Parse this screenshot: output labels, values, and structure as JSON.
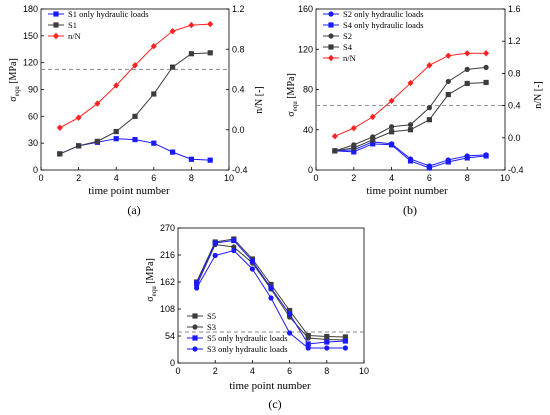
{
  "colors": {
    "black_series": "#3c3c3c",
    "blue_series": "#1a1aff",
    "red_series": "#ff2020",
    "dashed": "#888888"
  },
  "chart_data": [
    {
      "type": "line",
      "caption": "(a)",
      "xlabel": "time point number",
      "ylabel_sym": "σ",
      "ylabel_sub": "equ",
      "ylabel_unit": " [MPa]",
      "y2label": "n/N [-]",
      "xlim": [
        0,
        10
      ],
      "ylim": [
        0,
        180
      ],
      "y2lim": [
        -0.4,
        1.2
      ],
      "xticks": [
        0,
        2,
        4,
        6,
        8,
        10
      ],
      "yticks": [
        0,
        30,
        60,
        90,
        120,
        150,
        180
      ],
      "y2ticks": [
        -0.4,
        0.0,
        0.4,
        0.8,
        1.2
      ],
      "hline": {
        "axis": "y2",
        "value": 0.6
      },
      "legend_position": "top-left",
      "x": [
        1,
        2,
        3,
        4,
        5,
        6,
        7,
        8,
        9
      ],
      "series": [
        {
          "name": "S1 only hydraulic loads",
          "axis": "y",
          "color": "#1a1aff",
          "marker": "square",
          "values": [
            18,
            27,
            31,
            35,
            34,
            30,
            20,
            12,
            11
          ]
        },
        {
          "name": "S1",
          "axis": "y",
          "color": "#3c3c3c",
          "marker": "square",
          "values": [
            18,
            27,
            32,
            43,
            60,
            85,
            115,
            130,
            131
          ]
        },
        {
          "name": "n/N",
          "axis": "y2",
          "color": "#ff2020",
          "marker": "diamond",
          "values": [
            0.02,
            0.12,
            0.26,
            0.44,
            0.64,
            0.83,
            0.98,
            1.04,
            1.05
          ]
        }
      ]
    },
    {
      "type": "line",
      "caption": "(b)",
      "xlabel": "time point number",
      "ylabel_sym": "σ",
      "ylabel_sub": "equ",
      "ylabel_unit": " [MPa]",
      "y2label": "n/N [-]",
      "xlim": [
        0,
        10
      ],
      "ylim": [
        0,
        160
      ],
      "y2lim": [
        -0.4,
        1.6
      ],
      "xticks": [
        0,
        2,
        4,
        6,
        8,
        10
      ],
      "yticks": [
        0,
        40,
        80,
        120,
        160
      ],
      "y2ticks": [
        -0.4,
        0.0,
        0.4,
        0.8,
        1.2,
        1.6
      ],
      "hline": {
        "axis": "y2",
        "value": 0.4
      },
      "legend_position": "top-left",
      "x": [
        1,
        2,
        3,
        4,
        5,
        6,
        7,
        8,
        9
      ],
      "series": [
        {
          "name": "S2 only hydraulic loads",
          "axis": "y",
          "color": "#1a1aff",
          "marker": "circle",
          "values": [
            19,
            20,
            28,
            26,
            11,
            4,
            10,
            14,
            15
          ]
        },
        {
          "name": "S4 only hydraulic loads",
          "axis": "y",
          "color": "#1a1aff",
          "marker": "square",
          "values": [
            19,
            18,
            26,
            25,
            9,
            2,
            8,
            12,
            14
          ]
        },
        {
          "name": "S2",
          "axis": "y",
          "color": "#3c3c3c",
          "marker": "circle",
          "values": [
            19,
            25,
            33,
            43,
            45,
            62,
            88,
            100,
            102
          ]
        },
        {
          "name": "S4",
          "axis": "y",
          "color": "#3c3c3c",
          "marker": "square",
          "values": [
            19,
            22,
            30,
            38,
            40,
            50,
            75,
            86,
            87
          ]
        },
        {
          "name": "n/N",
          "axis": "y2",
          "color": "#ff2020",
          "marker": "diamond",
          "values": [
            0.02,
            0.12,
            0.26,
            0.46,
            0.68,
            0.9,
            1.02,
            1.05,
            1.05
          ]
        }
      ]
    },
    {
      "type": "line",
      "caption": "(c)",
      "xlabel": "time point number",
      "ylabel_sym": "σ",
      "ylabel_sub": "equ",
      "ylabel_unit": " [MPa]",
      "y2label": "",
      "xlim": [
        0,
        10
      ],
      "ylim": [
        0,
        270
      ],
      "xticks": [
        0,
        2,
        4,
        6,
        8,
        10
      ],
      "yticks": [
        0,
        54,
        108,
        162,
        216,
        270
      ],
      "hline": {
        "axis": "y",
        "value": 62
      },
      "legend_position": "bottom-left",
      "x": [
        1,
        2,
        3,
        4,
        5,
        6,
        7,
        8,
        9
      ],
      "series": [
        {
          "name": "S5",
          "axis": "y",
          "color": "#3c3c3c",
          "marker": "square",
          "values": [
            162,
            242,
            248,
            208,
            157,
            105,
            55,
            53,
            52
          ]
        },
        {
          "name": "S3",
          "axis": "y",
          "color": "#3c3c3c",
          "marker": "circle",
          "values": [
            155,
            237,
            232,
            200,
            148,
            92,
            50,
            47,
            46
          ]
        },
        {
          "name": "S5 only hydraulic loads",
          "axis": "y",
          "color": "#1a1aff",
          "marker": "square",
          "values": [
            160,
            240,
            245,
            204,
            150,
            98,
            38,
            42,
            44
          ]
        },
        {
          "name": "S3 only hydraulic loads",
          "axis": "y",
          "color": "#1a1aff",
          "marker": "circle",
          "values": [
            150,
            215,
            225,
            188,
            130,
            60,
            30,
            30,
            30
          ]
        }
      ]
    }
  ]
}
